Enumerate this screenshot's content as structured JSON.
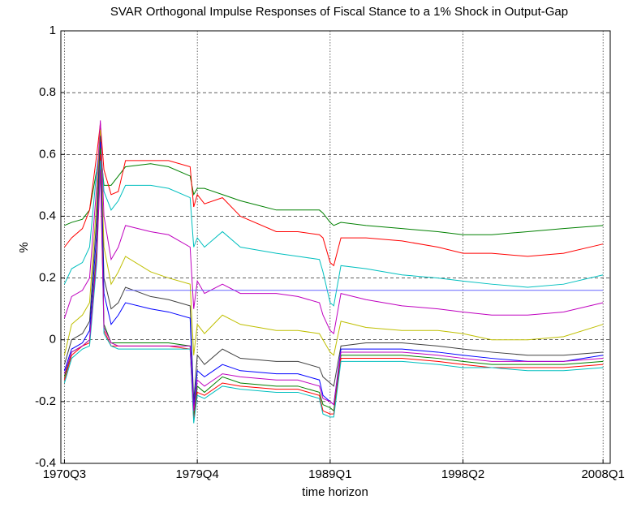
{
  "chart_data": {
    "type": "line",
    "title": "SVAR Orthogonal Impulse Responses of Fiscal Stance to a 1% Shock in Output-Gap",
    "xlabel": "time horizon",
    "ylabel": "%",
    "x": [
      1,
      3,
      6,
      8,
      10,
      11,
      12,
      14,
      16,
      18,
      25,
      30,
      36,
      37,
      38,
      40,
      45,
      50,
      60,
      66,
      72,
      73,
      75,
      76,
      78,
      85,
      95,
      105,
      112,
      120,
      130,
      140,
      151
    ],
    "xlim": [
      0,
      153
    ],
    "xticks": [
      {
        "value": 1,
        "label": "1970Q3"
      },
      {
        "value": 38,
        "label": "1979Q4"
      },
      {
        "value": 75,
        "label": "1989Q1"
      },
      {
        "value": 112,
        "label": "1998Q2"
      },
      {
        "value": 151,
        "label": "2008Q1"
      }
    ],
    "ylim": [
      -0.4,
      1
    ],
    "yticks": [
      -0.4,
      -0.2,
      0,
      0.2,
      0.4,
      0.6,
      0.8,
      1
    ],
    "grid": true,
    "series": [
      {
        "color": "#008000",
        "values": [
          0.37,
          0.38,
          0.39,
          0.42,
          0.55,
          0.62,
          0.5,
          0.5,
          0.53,
          0.56,
          0.57,
          0.56,
          0.53,
          0.47,
          0.49,
          0.49,
          0.47,
          0.45,
          0.42,
          0.42,
          0.42,
          0.41,
          0.38,
          0.37,
          0.38,
          0.37,
          0.36,
          0.35,
          0.34,
          0.34,
          0.35,
          0.36,
          0.37
        ]
      },
      {
        "color": "#ff0000",
        "values": [
          0.3,
          0.33,
          0.36,
          0.42,
          0.6,
          0.7,
          0.55,
          0.47,
          0.48,
          0.58,
          0.58,
          0.58,
          0.56,
          0.43,
          0.47,
          0.44,
          0.46,
          0.4,
          0.35,
          0.35,
          0.34,
          0.33,
          0.25,
          0.24,
          0.33,
          0.33,
          0.32,
          0.3,
          0.28,
          0.28,
          0.27,
          0.28,
          0.31
        ]
      },
      {
        "color": "#00bfbf",
        "values": [
          0.18,
          0.23,
          0.25,
          0.3,
          0.55,
          0.65,
          0.48,
          0.42,
          0.45,
          0.5,
          0.5,
          0.49,
          0.46,
          0.3,
          0.33,
          0.3,
          0.35,
          0.3,
          0.28,
          0.27,
          0.26,
          0.22,
          0.12,
          0.11,
          0.24,
          0.23,
          0.21,
          0.2,
          0.19,
          0.18,
          0.17,
          0.18,
          0.21
        ]
      },
      {
        "color": "#bf00bf",
        "values": [
          0.07,
          0.14,
          0.16,
          0.2,
          0.5,
          0.71,
          0.4,
          0.26,
          0.3,
          0.37,
          0.35,
          0.34,
          0.3,
          0.1,
          0.19,
          0.15,
          0.18,
          0.15,
          0.15,
          0.14,
          0.12,
          0.08,
          0.03,
          0.02,
          0.15,
          0.13,
          0.11,
          0.1,
          0.09,
          0.08,
          0.08,
          0.09,
          0.12
        ]
      },
      {
        "color": "#bfbf00",
        "values": [
          -0.05,
          0.05,
          0.08,
          0.12,
          0.45,
          0.68,
          0.3,
          0.18,
          0.22,
          0.27,
          0.22,
          0.2,
          0.18,
          -0.05,
          0.05,
          0.02,
          0.08,
          0.05,
          0.03,
          0.03,
          0.02,
          0.0,
          -0.04,
          -0.05,
          0.06,
          0.04,
          0.03,
          0.03,
          0.02,
          0.0,
          0.0,
          0.01,
          0.05
        ]
      },
      {
        "color": "#404040",
        "values": [
          -0.08,
          0.0,
          0.02,
          0.06,
          0.4,
          0.66,
          0.2,
          0.1,
          0.12,
          0.17,
          0.14,
          0.13,
          0.11,
          -0.2,
          -0.05,
          -0.08,
          -0.03,
          -0.06,
          -0.07,
          -0.07,
          -0.09,
          -0.12,
          -0.14,
          -0.15,
          -0.02,
          -0.01,
          -0.01,
          -0.02,
          -0.03,
          -0.04,
          -0.05,
          -0.05,
          -0.04
        ]
      },
      {
        "color": "#0000ff",
        "values": [
          -0.1,
          -0.03,
          -0.01,
          0.03,
          0.35,
          0.64,
          0.15,
          0.05,
          0.08,
          0.12,
          0.1,
          0.09,
          0.07,
          -0.22,
          -0.1,
          -0.12,
          -0.08,
          -0.1,
          -0.11,
          -0.11,
          -0.13,
          -0.18,
          -0.2,
          -0.21,
          -0.03,
          -0.03,
          -0.03,
          -0.04,
          -0.05,
          -0.06,
          -0.07,
          -0.07,
          -0.05
        ]
      },
      {
        "color": "#6666ff",
        "values": [
          null,
          null,
          null,
          null,
          null,
          null,
          null,
          null,
          null,
          0.16,
          0.16,
          0.16,
          0.16,
          0.16,
          0.16,
          0.16,
          0.16,
          0.16,
          0.16,
          0.16,
          0.16,
          0.16,
          0.16,
          0.16,
          0.16,
          0.16,
          0.16,
          0.16,
          0.16,
          0.16,
          0.16,
          0.16,
          0.16
        ]
      },
      {
        "color": "#008000",
        "values": [
          -0.12,
          -0.04,
          -0.02,
          0.0,
          0.3,
          0.62,
          0.05,
          -0.01,
          -0.01,
          -0.01,
          -0.01,
          -0.01,
          -0.02,
          -0.25,
          -0.15,
          -0.17,
          -0.12,
          -0.14,
          -0.15,
          -0.15,
          -0.17,
          -0.21,
          -0.22,
          -0.23,
          -0.05,
          -0.05,
          -0.05,
          -0.06,
          -0.07,
          -0.08,
          -0.08,
          -0.08,
          -0.07
        ]
      },
      {
        "color": "#ff0000",
        "values": [
          -0.13,
          -0.05,
          -0.02,
          -0.01,
          0.28,
          0.6,
          0.03,
          -0.02,
          -0.02,
          -0.02,
          -0.02,
          -0.02,
          -0.03,
          -0.26,
          -0.17,
          -0.18,
          -0.14,
          -0.15,
          -0.16,
          -0.16,
          -0.18,
          -0.23,
          -0.24,
          -0.24,
          -0.06,
          -0.06,
          -0.06,
          -0.07,
          -0.08,
          -0.09,
          -0.09,
          -0.09,
          -0.08
        ]
      },
      {
        "color": "#00bfbf",
        "values": [
          -0.14,
          -0.06,
          -0.03,
          -0.02,
          0.25,
          0.58,
          0.02,
          -0.02,
          -0.03,
          -0.03,
          -0.03,
          -0.03,
          -0.03,
          -0.27,
          -0.18,
          -0.19,
          -0.15,
          -0.16,
          -0.17,
          -0.17,
          -0.19,
          -0.24,
          -0.25,
          -0.25,
          -0.07,
          -0.07,
          -0.07,
          -0.08,
          -0.09,
          -0.09,
          -0.1,
          -0.1,
          -0.09
        ]
      },
      {
        "color": "#bf00bf",
        "values": [
          -0.11,
          -0.04,
          -0.02,
          0.0,
          0.27,
          0.55,
          0.04,
          -0.01,
          -0.02,
          -0.02,
          -0.02,
          -0.02,
          -0.02,
          -0.23,
          -0.13,
          -0.15,
          -0.11,
          -0.12,
          -0.13,
          -0.13,
          -0.15,
          -0.19,
          -0.2,
          -0.21,
          -0.04,
          -0.04,
          -0.04,
          -0.05,
          -0.06,
          -0.07,
          -0.07,
          -0.07,
          -0.06
        ]
      }
    ]
  }
}
